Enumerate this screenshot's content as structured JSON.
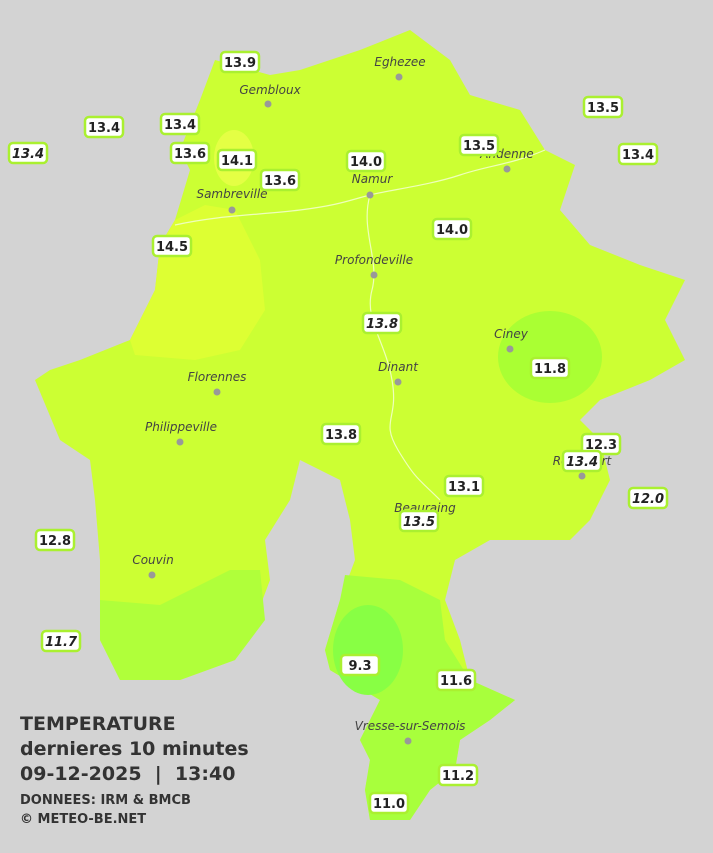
{
  "header": {
    "title": "TEMPERATURE",
    "subtitle": "dernieres 10 minutes",
    "datetime": "09-12-2025  |  13:40",
    "source": "DONNEES: IRM & BMCB",
    "copyright": "© METEO-BE.NET"
  },
  "cities": [
    "Eghezee",
    "Gembloux",
    "Andenne",
    "Namur",
    "Sambreville",
    "Profondeville",
    "Ciney",
    "Dinant",
    "Florennes",
    "Philippeville",
    "Rochefort",
    "Beauraing",
    "Couvin",
    "Vresse-sur-Semois"
  ],
  "stations": [
    "13.9",
    "13.4",
    "13.4",
    "13.4",
    "13.6",
    "14.1",
    "13.6",
    "14.0",
    "13.5",
    "13.5",
    "13.4",
    "14.5",
    "14.0",
    "13.8",
    "11.8",
    "13.8",
    "12.3",
    "13.4",
    "13.1",
    "12.0",
    "13.5",
    "12.8",
    "11.7",
    "9.3",
    "11.6",
    "11.2",
    "11.0"
  ]
}
